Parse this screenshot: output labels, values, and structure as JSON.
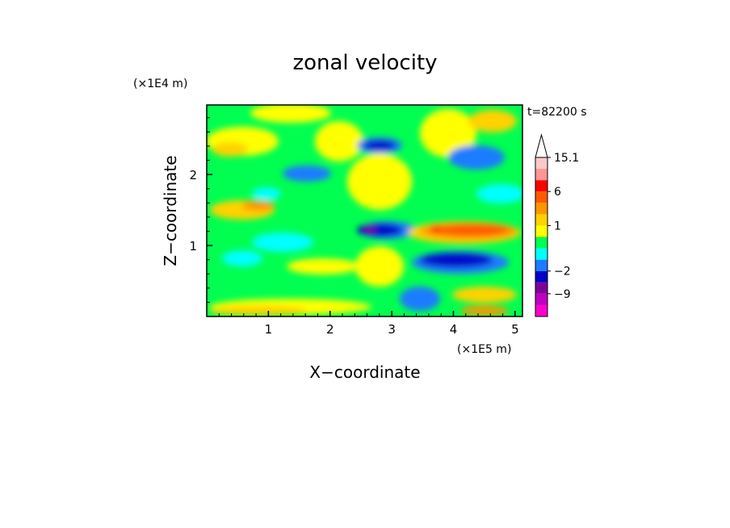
{
  "chart_data": {
    "type": "heatmap",
    "title": "zonal velocity",
    "xlabel": "X−coordinate",
    "ylabel": "Z−coordinate",
    "x_unit": "(×1E5 m)",
    "y_unit": "(×1E4 m)",
    "time_label": "t=82200 s",
    "xlim": [
      0,
      5.12
    ],
    "ylim": [
      0,
      2.98
    ],
    "x_ticks": [
      1,
      2,
      3,
      4,
      5
    ],
    "y_ticks": [
      1,
      2
    ],
    "x_tick_labels": [
      "1",
      "2",
      "3",
      "4",
      "5"
    ],
    "y_tick_labels": [
      "1",
      "2"
    ],
    "colorbar": {
      "tick_labels": [
        {
          "value": 15.1,
          "label": "15.1"
        },
        {
          "value": 6,
          "label": "6"
        },
        {
          "value": 1,
          "label": "1"
        },
        {
          "value": -2,
          "label": "−2"
        },
        {
          "value": -9,
          "label": "−9"
        }
      ],
      "colors": [
        "#ff00cc",
        "#c000c0",
        "#80009a",
        "#0000c8",
        "#1e7bff",
        "#00ffff",
        "#00ff50",
        "#ffff00",
        "#ffd200",
        "#ff9600",
        "#ff5a00",
        "#ff0000",
        "#ff9696",
        "#ffc8c8"
      ],
      "extend": "max"
    },
    "field_values": {
      "background": -0.5,
      "jet_upper_left": -6,
      "jet_right": 5,
      "jet_lower_right": -7
    },
    "grid": false,
    "legend": "colorbar-right"
  }
}
